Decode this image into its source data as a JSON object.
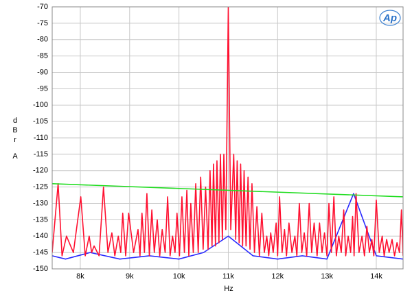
{
  "chart_data": {
    "type": "line",
    "xlabel": "Hz",
    "ylabel": "dBr",
    "ylabel_unit": "A",
    "logo": "Ap",
    "xlim": [
      7430,
      14543
    ],
    "ylim": [
      -150,
      -70
    ],
    "xticks": [
      {
        "value": 8000,
        "label": "8k"
      },
      {
        "value": 9000,
        "label": "9k"
      },
      {
        "value": 10000,
        "label": "10k"
      },
      {
        "value": 11000,
        "label": "11k"
      },
      {
        "value": 12000,
        "label": "12k"
      },
      {
        "value": 13000,
        "label": "13k"
      },
      {
        "value": 14000,
        "label": "14k"
      }
    ],
    "yticks": [
      -150,
      -145,
      -140,
      -135,
      -130,
      -125,
      -120,
      -115,
      -110,
      -105,
      -100,
      -95,
      -90,
      -85,
      -80,
      -75,
      -70
    ],
    "grid": true,
    "series": [
      {
        "color": "#2a2aff",
        "x": [
          7430,
          7700,
          8200,
          8800,
          9400,
          10000,
          10500,
          11000,
          11500,
          12000,
          12500,
          13000,
          13540,
          14000,
          14543
        ],
        "values": [
          -146,
          -147,
          -145,
          -147,
          -146,
          -147,
          -145,
          -140,
          -146,
          -147,
          -146,
          -147,
          -127,
          -146,
          -147
        ]
      },
      {
        "color": "#ff1030",
        "x": [
          7430,
          7550,
          7630,
          7720,
          7860,
          8010,
          8100,
          8180,
          8230,
          8280,
          8380,
          8470,
          8560,
          8640,
          8700,
          8770,
          8820,
          8860,
          8920,
          8980,
          9080,
          9170,
          9210,
          9250,
          9300,
          9350,
          9400,
          9450,
          9500,
          9560,
          9610,
          9660,
          9720,
          9770,
          9820,
          9870,
          9920,
          9960,
          10010,
          10060,
          10110,
          10160,
          10200,
          10240,
          10290,
          10340,
          10390,
          10440,
          10490,
          10540,
          10590,
          10630,
          10670,
          10700,
          10740,
          10770,
          10810,
          10840,
          10880,
          10910,
          10950,
          11000,
          11050,
          11110,
          11150,
          11180,
          11220,
          11250,
          11290,
          11320,
          11360,
          11400,
          11440,
          11480,
          11530,
          11580,
          11630,
          11680,
          11730,
          11780,
          11820,
          11860,
          11910,
          11970,
          12000,
          12040,
          12090,
          12140,
          12180,
          12230,
          12290,
          12350,
          12390,
          12440,
          12490,
          12540,
          12590,
          12640,
          12690,
          12740,
          12800,
          12850,
          12900,
          12950,
          13000,
          13040,
          13090,
          13140,
          13190,
          13240,
          13290,
          13340,
          13380,
          13430,
          13480,
          13520,
          13550,
          13590,
          13650,
          13710,
          13760,
          13810,
          13860,
          13910,
          13950,
          14000,
          14060,
          14120,
          14160,
          14210,
          14260,
          14320,
          14370,
          14420,
          14470,
          14510,
          14543
        ],
        "values": [
          -145,
          -124,
          -146,
          -140,
          -145,
          -128,
          -146,
          -140,
          -145,
          -143,
          -146,
          -125,
          -145,
          -139,
          -146,
          -140,
          -145,
          -133,
          -146,
          -133,
          -145,
          -138,
          -146,
          -133,
          -145,
          -127,
          -146,
          -132,
          -145,
          -135,
          -146,
          -138,
          -145,
          -128,
          -146,
          -140,
          -145,
          -133,
          -146,
          -128,
          -145,
          -126,
          -146,
          -130,
          -145,
          -124,
          -145,
          -122,
          -144,
          -125,
          -144,
          -120,
          -143,
          -118,
          -143,
          -117,
          -142,
          -115,
          -141,
          -115,
          -138,
          -70,
          -138,
          -115,
          -141,
          -117,
          -142,
          -118,
          -143,
          -120,
          -143,
          -122,
          -144,
          -124,
          -145,
          -131,
          -146,
          -133,
          -145,
          -140,
          -146,
          -139,
          -145,
          -136,
          -146,
          -128,
          -145,
          -138,
          -146,
          -136,
          -145,
          -140,
          -146,
          -130,
          -145,
          -139,
          -146,
          -130,
          -145,
          -136,
          -146,
          -136,
          -145,
          -139,
          -146,
          -130,
          -145,
          -128,
          -146,
          -140,
          -145,
          -132,
          -146,
          -140,
          -145,
          -134,
          -146,
          -127,
          -145,
          -140,
          -146,
          -137,
          -145,
          -141,
          -146,
          -129,
          -145,
          -140,
          -146,
          -141,
          -145,
          -141,
          -146,
          -142,
          -145,
          -132,
          -146
        ]
      },
      {
        "color": "#22dd22",
        "x": [
          7430,
          14543
        ],
        "values": [
          -124,
          -128
        ]
      }
    ]
  }
}
